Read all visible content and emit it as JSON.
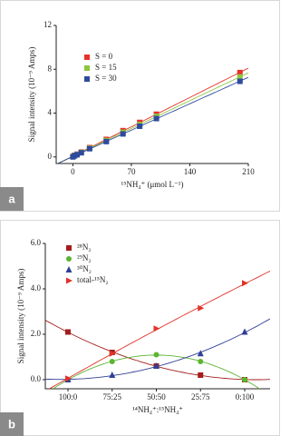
{
  "panels": [
    "a",
    "b"
  ],
  "chart_data": [
    {
      "type": "scatter",
      "x_label": "¹⁵NH₄⁺ (μmol L⁻¹)",
      "y_label": "Signal intensity (10⁻⁹ Amps)",
      "x": [
        0,
        2,
        5,
        10,
        20,
        40,
        60,
        80,
        100,
        200
      ],
      "xlim": [
        -20,
        210
      ],
      "xticks": [
        0,
        70,
        140,
        210
      ],
      "ylim": [
        -0.6,
        12
      ],
      "yticks": [
        0,
        4,
        8,
        12
      ],
      "fit": "linear",
      "series": [
        {
          "name": "S = 0",
          "color": "#e8312a",
          "marker": "square",
          "values": [
            0.05,
            0.15,
            0.25,
            0.45,
            0.85,
            1.6,
            2.4,
            3.15,
            3.9,
            7.7
          ]
        },
        {
          "name": "S = 15",
          "color": "#8dc63f",
          "marker": "square",
          "values": [
            0.05,
            0.12,
            0.22,
            0.42,
            0.8,
            1.5,
            2.25,
            2.95,
            3.7,
            7.3
          ]
        },
        {
          "name": "S = 30",
          "color": "#2e4a9e",
          "marker": "square",
          "values": [
            0.0,
            0.1,
            0.2,
            0.38,
            0.75,
            1.4,
            2.1,
            2.8,
            3.5,
            6.9
          ]
        }
      ]
    },
    {
      "type": "category-scatter",
      "x_label": "¹⁴NH₄⁺:¹⁵NH₄⁺",
      "y_label": "Signal intensity (10⁻⁹ Amps)",
      "categories": [
        "100:0",
        "75:25",
        "50:50",
        "25:75",
        "0:100"
      ],
      "ylim": [
        -0.4,
        6.0
      ],
      "yticks": [
        {
          "value": 0,
          "label": "0.0"
        },
        {
          "value": 2,
          "label": "2.0"
        },
        {
          "value": 4,
          "label": "4.0"
        },
        {
          "value": 6,
          "label": "6.0"
        }
      ],
      "fit": "quadratic",
      "series": [
        {
          "name": "²⁸N₂",
          "color": "#a31d1d",
          "marker": "square",
          "values": [
            2.1,
            1.2,
            0.6,
            0.2,
            0.0
          ]
        },
        {
          "name": "²⁹N₂",
          "color": "#5cb531",
          "marker": "circle",
          "values": [
            0.0,
            0.8,
            1.1,
            0.8,
            0.0
          ]
        },
        {
          "name": "³⁰N₂",
          "color": "#2f3f95",
          "marker": "triangle",
          "values": [
            0.0,
            0.2,
            0.6,
            1.15,
            2.1
          ]
        },
        {
          "name": "total-¹⁵N₂",
          "color": "#e0332a",
          "marker": "right-triangle",
          "values": [
            0.05,
            1.15,
            2.25,
            3.15,
            4.25
          ]
        }
      ]
    }
  ]
}
